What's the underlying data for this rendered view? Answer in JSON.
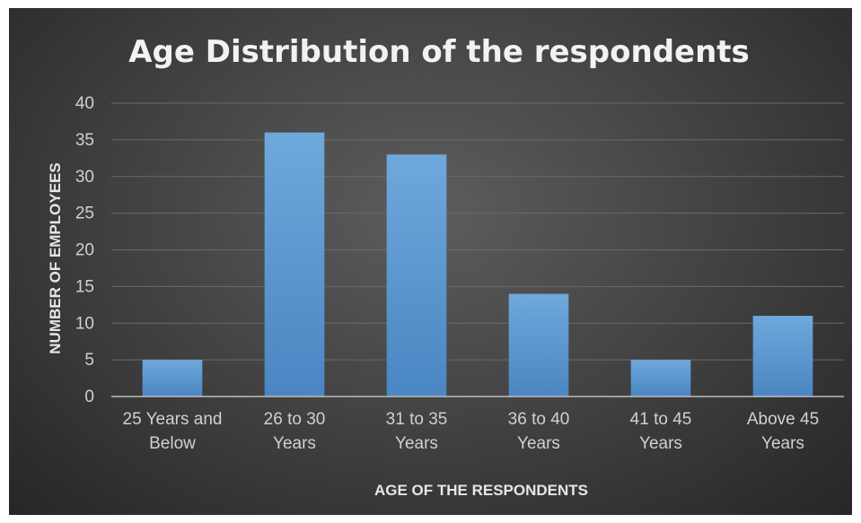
{
  "chart_data": {
    "type": "bar",
    "title": "Age Distribution of the respondents",
    "xlabel": "AGE OF THE RESPONDENTS",
    "ylabel": "NUMBER OF EMPLOYEES",
    "categories": [
      [
        "25 Years and",
        "Below"
      ],
      [
        "26 to 30",
        "Years"
      ],
      [
        "31 to 35",
        "Years"
      ],
      [
        "36 to 40",
        "Years"
      ],
      [
        "41 to 45",
        "Years"
      ],
      [
        "Above 45",
        "Years"
      ]
    ],
    "values": [
      5,
      36,
      33,
      14,
      5,
      11
    ],
    "ylim": [
      0,
      40
    ],
    "yticks": [
      "0",
      "5",
      "10",
      "15",
      "20",
      "25",
      "30",
      "35",
      "40"
    ],
    "grid": true,
    "legend": "none",
    "colors": {
      "bar": "#5b9bd5",
      "bar_light": "#6fa8dc",
      "bar_dark": "#4a86c2"
    }
  }
}
